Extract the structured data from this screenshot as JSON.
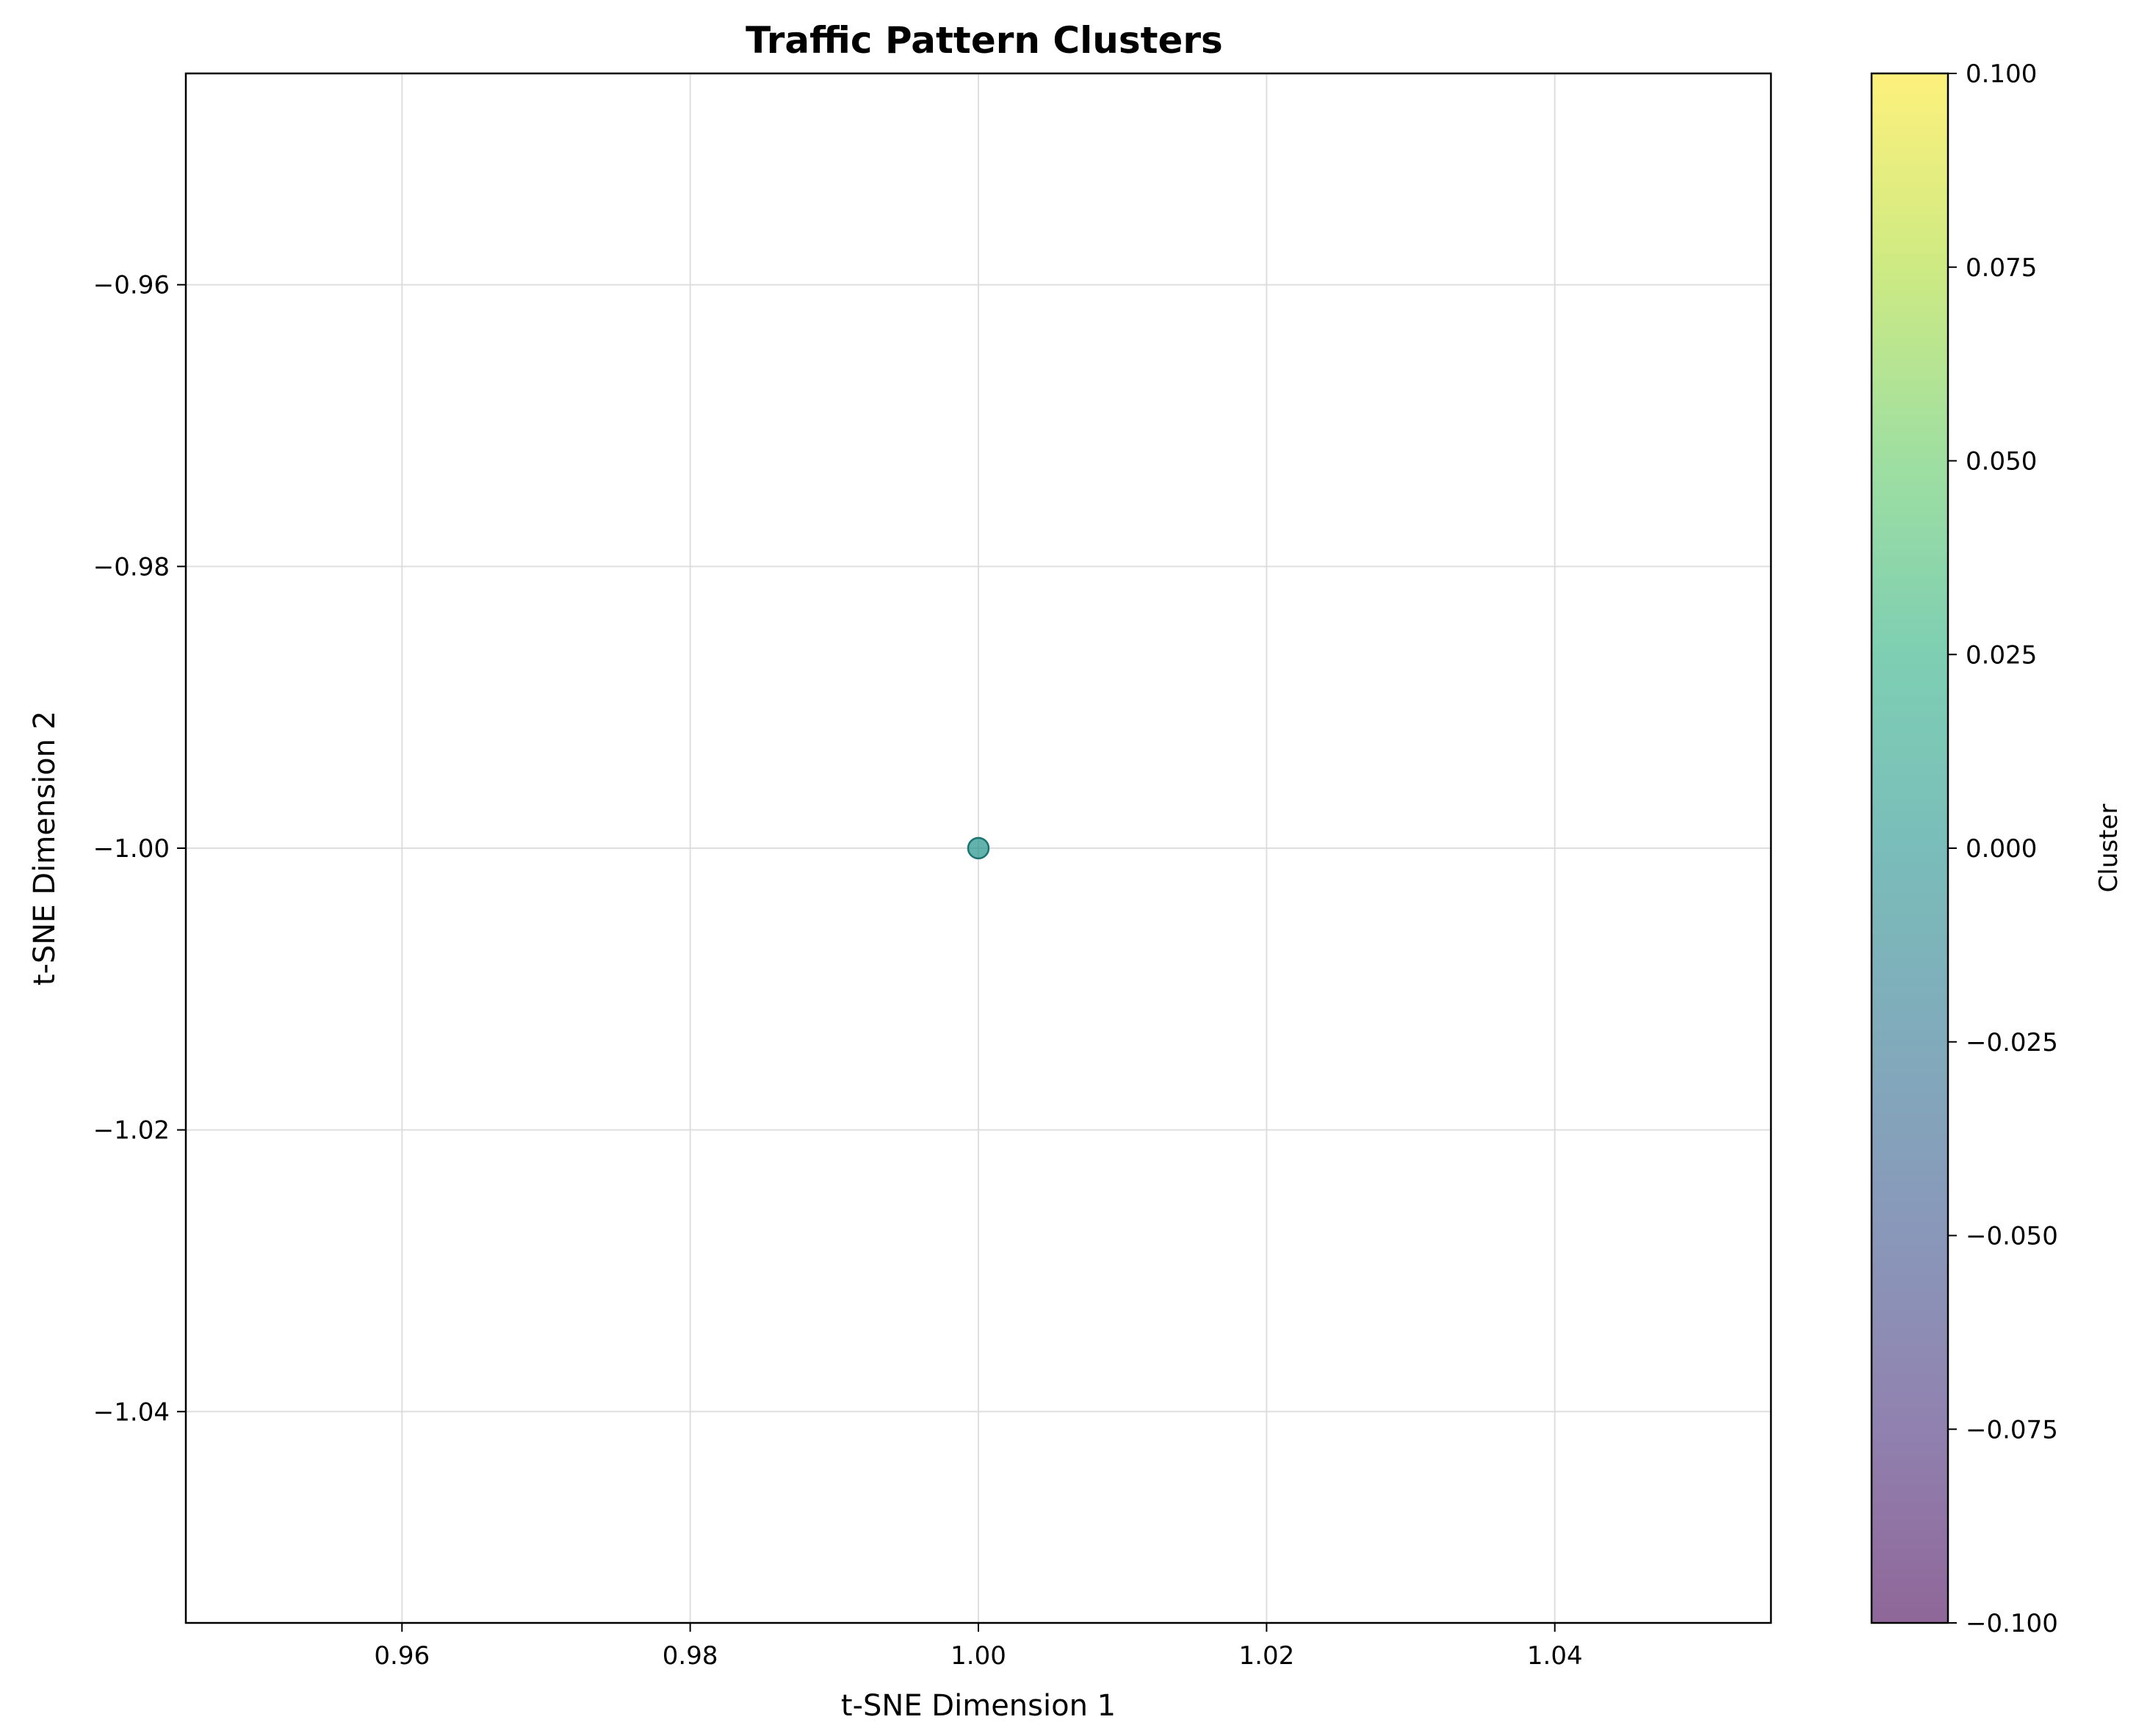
{
  "chart_data": {
    "type": "scatter",
    "title": "Traffic Pattern Clusters",
    "xlabel": "t-SNE Dimension 1",
    "ylabel": "t-SNE Dimension 2",
    "xlim": [
      0.945,
      1.055
    ],
    "ylim": [
      -1.055,
      -0.945
    ],
    "xticks": [
      0.96,
      0.98,
      1.0,
      1.02,
      1.04
    ],
    "xtick_labels": [
      "0.96",
      "0.98",
      "1.00",
      "1.02",
      "1.04"
    ],
    "yticks": [
      -0.96,
      -0.98,
      -1.0,
      -1.02,
      -1.04
    ],
    "ytick_labels": [
      "−0.96",
      "−0.98",
      "−1.00",
      "−1.02",
      "−1.04"
    ],
    "grid": true,
    "points": [
      {
        "x": 1.0,
        "y": -1.0,
        "cluster": 0.0
      }
    ],
    "colorbar": {
      "label": "Cluster",
      "range": [
        -0.1,
        0.1
      ],
      "colormap": "viridis",
      "alpha": 0.6,
      "ticks": [
        0.1,
        0.075,
        0.05,
        0.025,
        0.0,
        -0.025,
        -0.05,
        -0.075,
        -0.1
      ],
      "tick_labels": [
        "0.100",
        "0.075",
        "0.050",
        "0.025",
        "0.000",
        "−0.025",
        "−0.050",
        "−0.075",
        "−0.100"
      ]
    },
    "point_color": "#21918c",
    "point_edge_color": "#1a7470"
  }
}
